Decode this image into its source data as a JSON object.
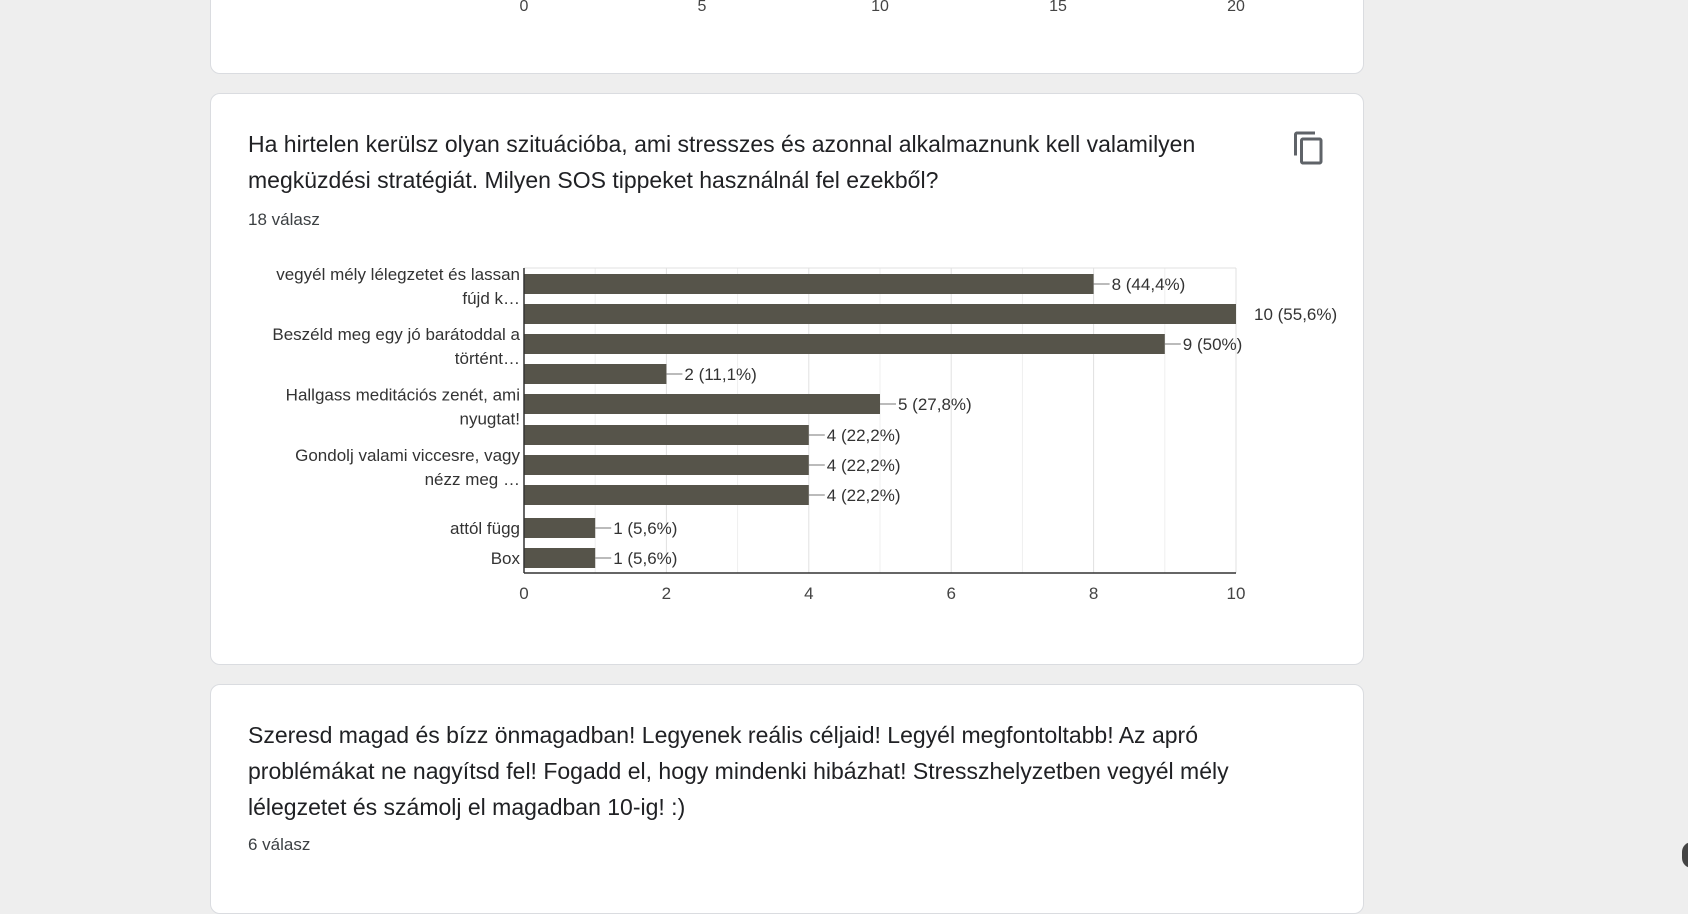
{
  "top_card": {
    "axis_ticks": [
      "0",
      "5",
      "10",
      "15",
      "20"
    ],
    "axis_max": 20
  },
  "main_card": {
    "question": "Ha hirtelen kerülsz olyan szituációba, ami stresszes és azonnal alkalmaznunk kell valamilyen megküzdési stratégiát. Milyen SOS tippeket használnál fel ezekből?",
    "response_count": "18 válasz",
    "copy_icon": "copy-icon"
  },
  "bottom_card": {
    "question": "Szeresd magad és bízz önmagadban! Legyenek reális céljaid! Legyél megfontoltabb! Az apró problémákat ne nagyítsd fel! Fogadd el, hogy mindenki hibázhat! Stresszhelyzetben vegyél mély lélegzetet és számolj el magadban 10-ig! :)",
    "response_count": "6 válasz"
  },
  "chart_data": {
    "type": "bar",
    "orientation": "horizontal",
    "categories": [
      [
        "vegyél mély lélegzetet és lassan",
        "fújd k…"
      ],
      [],
      [
        "Beszéld meg egy jó barátoddal a",
        "történt…"
      ],
      [],
      [
        "Hallgass meditációs zenét, ami",
        "nyugtat!"
      ],
      [],
      [
        "Gondolj valami viccesre, vagy",
        "nézz meg …"
      ],
      [],
      [
        "attól függ"
      ],
      [
        "Box"
      ]
    ],
    "values": [
      8,
      10,
      9,
      2,
      5,
      4,
      4,
      4,
      1,
      1
    ],
    "data_labels": [
      "8 (44,4%)",
      "10 (55,6%)",
      "9 (50%)",
      "2 (11,1%)",
      "5 (27,8%)",
      "4 (22,2%)",
      "4 (22,2%)",
      "4 (22,2%)",
      "1 (5,6%)",
      "1 (5,6%)"
    ],
    "x_ticks": [
      "0",
      "2",
      "4",
      "6",
      "8",
      "10"
    ],
    "xlim": [
      0,
      10
    ],
    "grid": true,
    "bar_color": "#56544a"
  }
}
